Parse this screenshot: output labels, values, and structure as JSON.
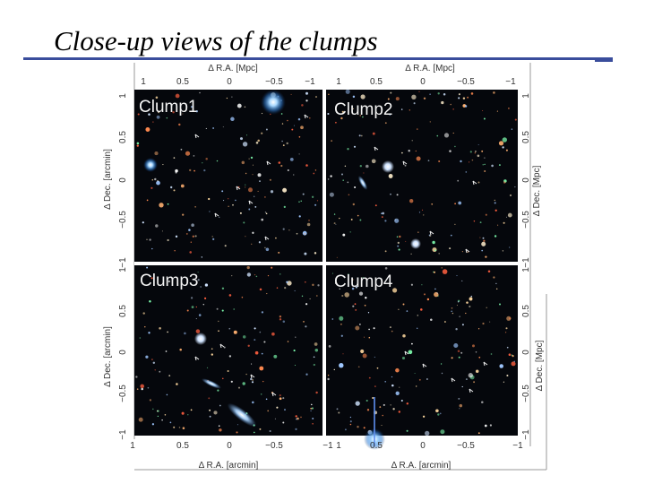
{
  "slide": {
    "title": "Close-up views of the clumps"
  },
  "figure": {
    "panels": [
      {
        "label": "Clump1"
      },
      {
        "label": "Clump2"
      },
      {
        "label": "Clump3"
      },
      {
        "label": "Clump4"
      }
    ],
    "axes": {
      "top_label": "Δ R.A. [Mpc]",
      "bottom_label": "Δ R.A. [arcmin]",
      "left_label": "Δ Dec. [arcmin]",
      "right_label": "Δ Dec. [Mpc]",
      "x_ticks": [
        "1",
        "0.5",
        "0",
        "−0.5",
        "−1"
      ],
      "y_ticks": [
        "1",
        "0.5",
        "0",
        "−0.5",
        "−1"
      ]
    },
    "colors": {
      "sky": "#05070c",
      "separator": "#ffffff",
      "frame": "#888888"
    }
  }
}
